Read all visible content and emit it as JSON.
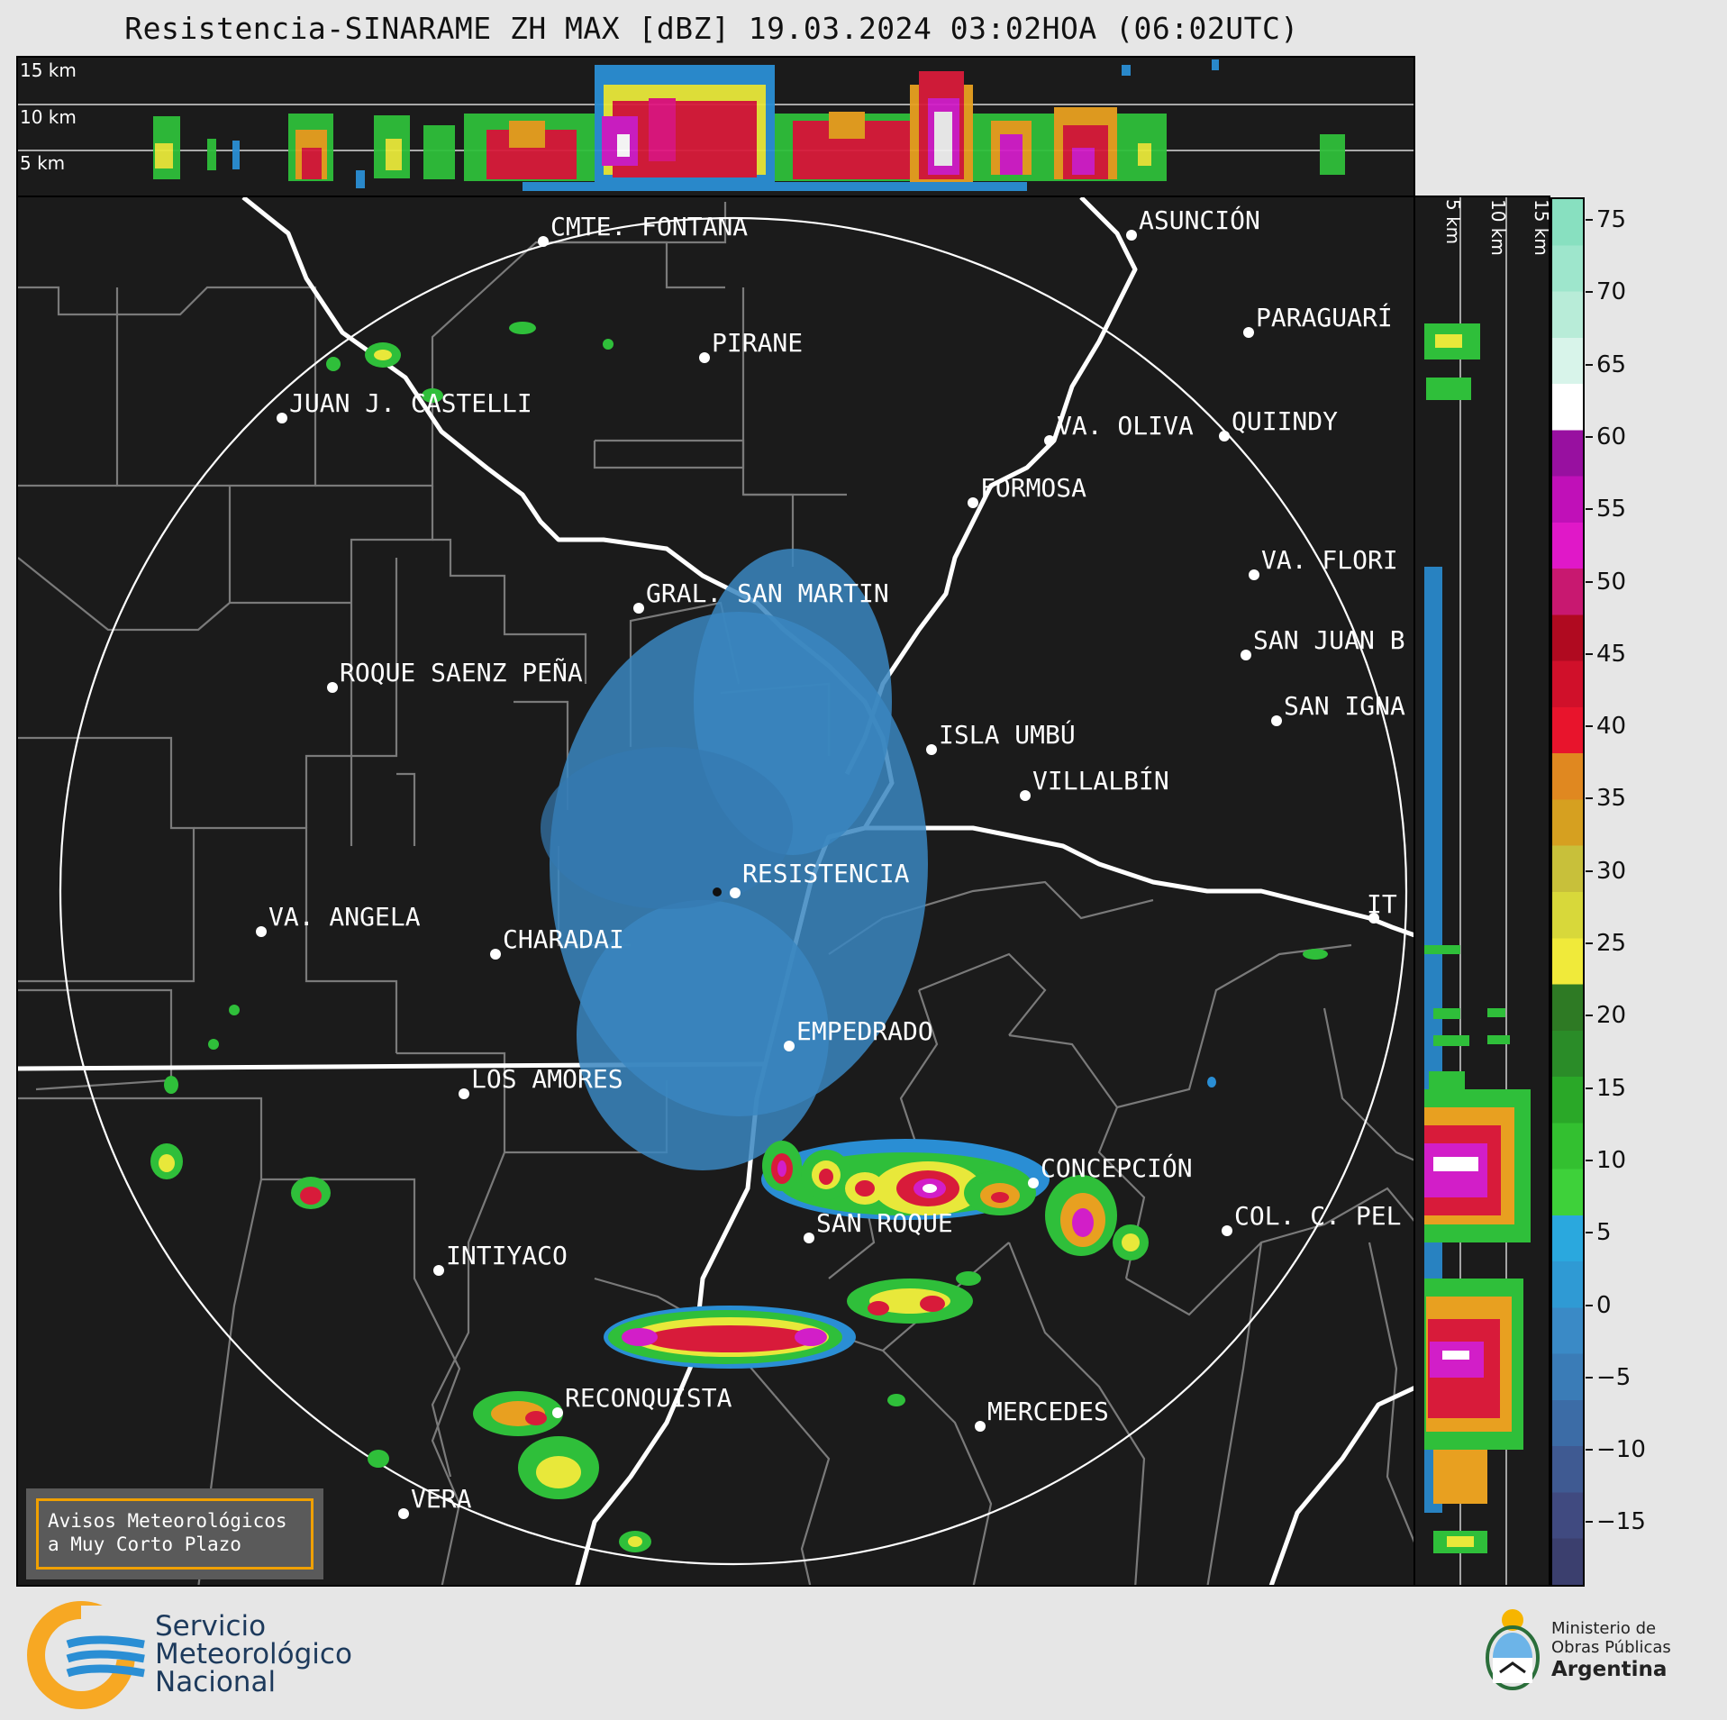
{
  "title": "Resistencia-SINARAME ZH MAX [dBZ] 19.03.2024 03:02HOA (06:02UTC)",
  "top_panel": {
    "altitude_labels": [
      "15 km",
      "10 km",
      "5 km"
    ]
  },
  "side_panel": {
    "altitude_labels": [
      "5 km",
      "10 km",
      "15 km"
    ]
  },
  "colorbar": {
    "unit": "dBZ",
    "ticks": [
      "75",
      "70",
      "65",
      "60",
      "55",
      "50",
      "45",
      "40",
      "35",
      "30",
      "25",
      "20",
      "15",
      "10",
      "5",
      "0",
      "−5",
      "−10",
      "−15"
    ]
  },
  "map": {
    "radar_site": "RESISTENCIA",
    "places": [
      {
        "name": "CMTE. FONTANA"
      },
      {
        "name": "ASUNCIÓN"
      },
      {
        "name": "PARAGUARÍ"
      },
      {
        "name": "PIRANE"
      },
      {
        "name": "JUAN J. CASTELLI"
      },
      {
        "name": "VA. OLIVA"
      },
      {
        "name": "QUIINDY"
      },
      {
        "name": "FORMOSA"
      },
      {
        "name": "VA. FLORI"
      },
      {
        "name": "GRAL. SAN MARTIN"
      },
      {
        "name": "SAN JUAN B"
      },
      {
        "name": "ROQUE SAENZ PEÑA"
      },
      {
        "name": "SAN IGNA"
      },
      {
        "name": "ISLA UMBÚ"
      },
      {
        "name": "VILLALBÍN"
      },
      {
        "name": "RESISTENCIA"
      },
      {
        "name": "IT"
      },
      {
        "name": "VA. ANGELA"
      },
      {
        "name": "CHARADAI"
      },
      {
        "name": "EMPEDRADO"
      },
      {
        "name": "LOS AMORES"
      },
      {
        "name": "CONCEPCIÓN"
      },
      {
        "name": "SAN ROQUE"
      },
      {
        "name": "COL. C. PEL"
      },
      {
        "name": "INTIYACO"
      },
      {
        "name": "RECONQUISTA"
      },
      {
        "name": "MERCEDES"
      },
      {
        "name": "VERA"
      }
    ]
  },
  "warning_box": {
    "line1": "Avisos Meteorológicos",
    "line2": "a Muy Corto Plazo"
  },
  "footer": {
    "smn": [
      "Servicio",
      "Meteorológico",
      "Nacional"
    ],
    "ministry": [
      "Ministerio de",
      "Obras Públicas",
      "Argentina"
    ]
  },
  "colors": {
    "background": "#e6e6e6",
    "panel": "#1b1b1b",
    "warning_border": "#f0a000",
    "smn_orange": "#f7a823",
    "smn_blue": "#2a8ed4"
  }
}
